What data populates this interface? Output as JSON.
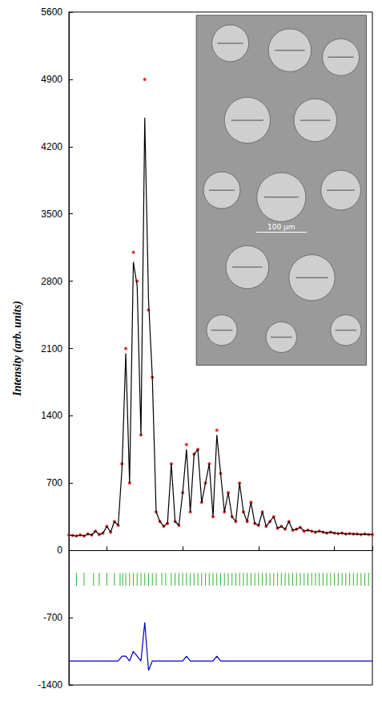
{
  "chart_data": {
    "type": "line",
    "y_label": "Intensity (arb. units)",
    "ylim": [
      -1400,
      5600
    ],
    "yticks": [
      -1400,
      -700,
      0,
      700,
      1400,
      2100,
      2800,
      3500,
      4200,
      4900,
      5600
    ],
    "xlim": [
      10,
      90
    ],
    "tick_labels": "y",
    "grid": false,
    "inset": {
      "scale_bar": "100 µm"
    },
    "x": [
      10,
      11,
      12,
      13,
      14,
      15,
      16,
      17,
      18,
      19,
      20,
      21,
      22,
      23,
      24,
      25,
      26,
      27,
      28,
      29,
      30,
      31,
      32,
      33,
      34,
      35,
      36,
      37,
      38,
      39,
      40,
      41,
      42,
      43,
      44,
      45,
      46,
      47,
      48,
      49,
      50,
      51,
      52,
      53,
      54,
      55,
      56,
      57,
      58,
      59,
      60,
      61,
      62,
      63,
      64,
      65,
      66,
      67,
      68,
      69,
      70,
      71,
      72,
      73,
      74,
      75,
      76,
      77,
      78,
      79,
      80,
      81,
      82,
      83,
      84,
      85,
      86,
      87,
      88,
      89,
      90
    ],
    "series": [
      {
        "type": "scatter",
        "marker": "circle",
        "color": "#e00000",
        "values": [
          160,
          155,
          150,
          160,
          150,
          170,
          160,
          200,
          165,
          180,
          250,
          190,
          300,
          260,
          900,
          2100,
          700,
          3100,
          2800,
          1200,
          4900,
          2500,
          1800,
          400,
          300,
          250,
          280,
          900,
          300,
          260,
          600,
          1100,
          400,
          1000,
          1050,
          500,
          700,
          900,
          350,
          1250,
          800,
          400,
          600,
          350,
          300,
          700,
          400,
          300,
          500,
          280,
          260,
          400,
          250,
          300,
          350,
          230,
          250,
          220,
          300,
          210,
          220,
          240,
          200,
          210,
          200,
          190,
          200,
          190,
          180,
          190,
          180,
          175,
          180,
          170,
          175,
          170,
          170,
          165,
          170,
          165,
          165
        ]
      },
      {
        "type": "line",
        "line_style": "solid",
        "color": "#000000",
        "values": [
          160,
          155,
          150,
          160,
          150,
          170,
          160,
          200,
          165,
          180,
          250,
          190,
          300,
          260,
          850,
          2050,
          700,
          3000,
          2750,
          1200,
          4500,
          2600,
          1800,
          400,
          300,
          250,
          280,
          900,
          300,
          260,
          600,
          1050,
          400,
          1000,
          1050,
          500,
          700,
          900,
          350,
          1200,
          800,
          400,
          600,
          350,
          300,
          700,
          400,
          300,
          500,
          280,
          260,
          400,
          250,
          300,
          350,
          230,
          250,
          220,
          300,
          210,
          220,
          240,
          200,
          210,
          200,
          190,
          200,
          190,
          180,
          190,
          180,
          175,
          180,
          170,
          175,
          170,
          170,
          165,
          170,
          165,
          165
        ]
      },
      {
        "type": "line",
        "line_style": "solid",
        "color": "#0000cc",
        "values": [
          -1150,
          -1150,
          -1150,
          -1150,
          -1150,
          -1150,
          -1150,
          -1150,
          -1150,
          -1150,
          -1150,
          -1150,
          -1150,
          -1150,
          -1100,
          -1100,
          -1150,
          -1050,
          -1100,
          -1150,
          -750,
          -1250,
          -1150,
          -1150,
          -1150,
          -1150,
          -1150,
          -1150,
          -1150,
          -1150,
          -1150,
          -1100,
          -1150,
          -1150,
          -1150,
          -1150,
          -1150,
          -1150,
          -1150,
          -1100,
          -1150,
          -1150,
          -1150,
          -1150,
          -1150,
          -1150,
          -1150,
          -1150,
          -1150,
          -1150,
          -1150,
          -1150,
          -1150,
          -1150,
          -1150,
          -1150,
          -1150,
          -1150,
          -1150,
          -1150,
          -1150,
          -1150,
          -1150,
          -1150,
          -1150,
          -1150,
          -1150,
          -1150,
          -1150,
          -1150,
          -1150,
          -1150,
          -1150,
          -1150,
          -1150,
          -1150,
          -1150,
          -1150,
          -1150,
          -1150,
          -1150
        ]
      },
      {
        "type": "scatter",
        "marker": "vline",
        "color": "#00a000",
        "x": [
          12,
          14,
          16.5,
          18,
          20,
          22,
          23.5,
          24.2,
          25,
          26,
          27,
          28,
          29,
          30,
          31,
          32,
          33,
          34.5,
          35.5,
          37,
          38,
          39,
          40,
          41,
          42,
          43,
          44,
          45,
          46,
          47,
          48,
          49,
          50,
          51,
          52,
          53,
          54,
          55,
          56,
          57,
          58,
          59,
          60,
          61,
          62,
          63,
          64,
          65,
          66,
          67,
          68,
          69,
          70,
          71,
          72,
          73,
          74,
          75,
          76,
          77,
          78,
          79,
          80,
          81,
          82,
          83,
          84,
          85,
          86,
          87,
          88,
          89
        ],
        "values": [
          -300,
          -300,
          -300,
          -300,
          -300,
          -300,
          -300,
          -300,
          -300,
          -300,
          -300,
          -300,
          -300,
          -300,
          -300,
          -300,
          -300,
          -300,
          -300,
          -300,
          -300,
          -300,
          -300,
          -300,
          -300,
          -300,
          -300,
          -300,
          -300,
          -300,
          -300,
          -300,
          -300,
          -300,
          -300,
          -300,
          -300,
          -300,
          -300,
          -300,
          -300,
          -300,
          -300,
          -300,
          -300,
          -300,
          -300,
          -300,
          -300,
          -300,
          -300,
          -300,
          -300,
          -300,
          -300,
          -300,
          -300,
          -300,
          -300,
          -300,
          -300,
          -300,
          -300,
          -300,
          -300,
          -300,
          -300,
          -300,
          -300,
          -300,
          -300,
          -300
        ]
      }
    ]
  }
}
